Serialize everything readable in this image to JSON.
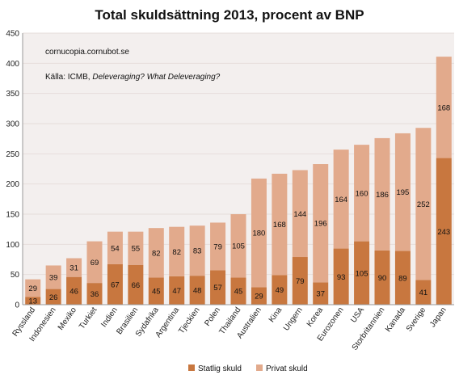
{
  "chart_data": {
    "type": "bar",
    "stacked": true,
    "title": "Total skuldsättning 2013, procent av BNP",
    "annotations": {
      "source_site": "cornucopia.cornubot.se",
      "source_prefix": "Källa: ICMB, ",
      "source_title": "Deleveraging? What Deleveraging?"
    },
    "xlabel": "",
    "ylabel": "",
    "ylim": [
      0,
      450
    ],
    "yticks": [
      0,
      50,
      100,
      150,
      200,
      250,
      300,
      350,
      400,
      450
    ],
    "grid": true,
    "legend_position": "bottom",
    "colors": {
      "Statlig skuld": "#c8773f",
      "Privat skuld": "#e2aa8c",
      "background": "#f3efee",
      "grid": "#e6dedb"
    },
    "categories": [
      "Ryssland",
      "Indonesien",
      "Mexiko",
      "Turkiet",
      "Indien",
      "Brasilien",
      "Sydafrika",
      "Argentina",
      "Tjeckien",
      "Polen",
      "Thailand",
      "Australien",
      "Kina",
      "Ungern",
      "Korea",
      "Eurozonen",
      "USA",
      "Storbritannien",
      "Kanada",
      "Sverige",
      "Japan"
    ],
    "series": [
      {
        "name": "Statlig skuld",
        "values": [
          13,
          26,
          46,
          36,
          67,
          66,
          45,
          47,
          48,
          57,
          45,
          29,
          49,
          79,
          37,
          93,
          105,
          90,
          89,
          41,
          243
        ]
      },
      {
        "name": "Privat skuld",
        "values": [
          29,
          39,
          31,
          69,
          54,
          55,
          82,
          82,
          83,
          79,
          105,
          180,
          168,
          144,
          196,
          164,
          160,
          186,
          195,
          252,
          168
        ]
      }
    ]
  }
}
